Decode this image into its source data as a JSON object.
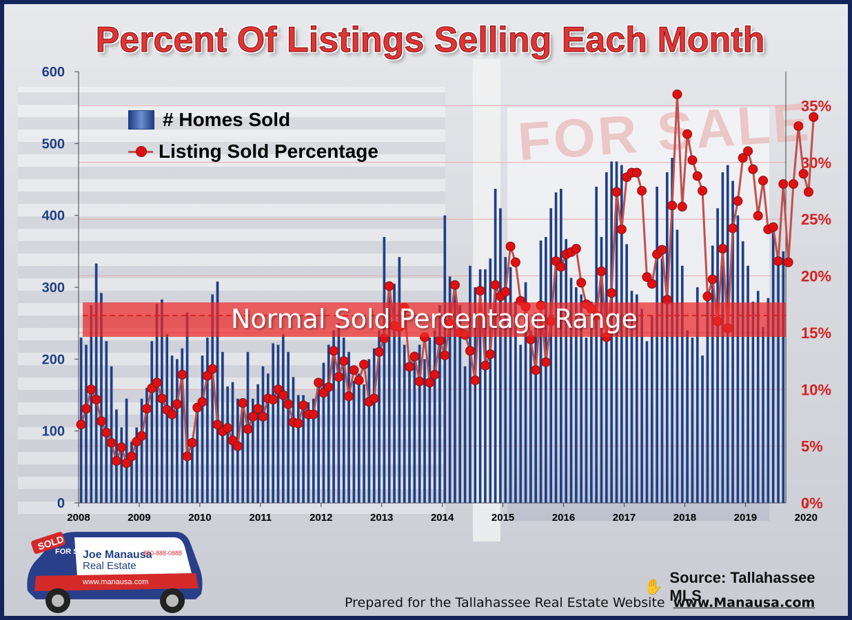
{
  "title": "Percent Of Listings Selling Each Month",
  "legend": {
    "bars": "# Homes Sold",
    "line": "Listing Sold Percentage"
  },
  "band_label": "Normal Sold Percentage Range",
  "sign_text": "FOR SALE",
  "source": "Source: Tallahassee MLS",
  "footer": {
    "text": "Prepared for the Tallahassee Real Estate Website",
    "url": "www.Manausa.com"
  },
  "car_logo": {
    "badge": "SOLD",
    "sign": "FOR SALE",
    "brand_line1": "Joe Manausa",
    "brand_line2": "Real Estate",
    "web": "www.manausa.com",
    "phone": "850-888-0888"
  },
  "colors": {
    "bars": "#1f3f86",
    "line": "#c0504d",
    "marker": "#e01010",
    "left_axis": "#1f3f86",
    "right_axis": "#d62020",
    "band": "#ec2828",
    "frame": "#14255a"
  },
  "chart_data": {
    "type": "bar+line",
    "title": "Percent Of Listings Selling Each Month",
    "x_tick_labels": [
      "2008",
      "2009",
      "2010",
      "2011",
      "2012",
      "2013",
      "2014",
      "2015",
      "2016",
      "2017",
      "2018",
      "2019",
      "2020"
    ],
    "y_left": {
      "range": [
        0,
        600
      ],
      "ticks": [
        "0",
        "100",
        "200",
        "300",
        "400",
        "500",
        "600"
      ]
    },
    "y_right": {
      "range": [
        0,
        38
      ],
      "ticks": [
        "0%",
        "5%",
        "10%",
        "15%",
        "20%",
        "25%",
        "30%",
        "35%"
      ]
    },
    "normal_range_percent": [
      15,
      18
    ],
    "normal_range_center_percent": 16.5,
    "series": [
      {
        "name": "# Homes Sold",
        "type": "bar",
        "axis": "left",
        "values": [
          230,
          220,
          275,
          333,
          292,
          225,
          190,
          130,
          105,
          145,
          85,
          105,
          145,
          160,
          225,
          277,
          283,
          235,
          205,
          200,
          215,
          265,
          85,
          130,
          205,
          230,
          290,
          308,
          210,
          162,
          168,
          145,
          130,
          210,
          145,
          165,
          190,
          180,
          222,
          220,
          235,
          210,
          175,
          150,
          150,
          140,
          145,
          170,
          195,
          220,
          240,
          250,
          230,
          210,
          170,
          180,
          165,
          200,
          215,
          240,
          370,
          300,
          305,
          342,
          220,
          200,
          210,
          220,
          200,
          230,
          240,
          275,
          400,
          315,
          300,
          275,
          190,
          330,
          300,
          325,
          325,
          340,
          437,
          410,
          342,
          328,
          280,
          220,
          307,
          240,
          265,
          365,
          370,
          410,
          432,
          437,
          367,
          313,
          300,
          290,
          230,
          280,
          440,
          370,
          460,
          475,
          475,
          470,
          360,
          295,
          290,
          270,
          225,
          260,
          440,
          340,
          460,
          480,
          380,
          330,
          240,
          230,
          300,
          205,
          295,
          358,
          410,
          460,
          470,
          448,
          400,
          364,
          330,
          280,
          295,
          245,
          285,
          378,
          350,
          350
        ]
      },
      {
        "name": "Listing Sold Percentage",
        "type": "line",
        "axis": "right",
        "values": [
          6.9,
          8.3,
          10.0,
          9.1,
          7.2,
          6.2,
          5.3,
          3.7,
          4.9,
          3.5,
          4.1,
          5.4,
          5.9,
          8.3,
          10.1,
          10.6,
          9.2,
          8.2,
          7.8,
          8.7,
          11.3,
          4.1,
          5.3,
          8.4,
          8.9,
          11.2,
          11.8,
          6.9,
          6.3,
          6.6,
          5.5,
          5.0,
          8.8,
          6.5,
          7.6,
          8.3,
          7.6,
          9.2,
          9.1,
          10.0,
          9.5,
          8.7,
          7.1,
          7.0,
          8.6,
          7.8,
          7.8,
          10.6,
          9.7,
          10.2,
          13.4,
          11.1,
          12.5,
          9.4,
          11.7,
          10.8,
          12.2,
          8.9,
          9.2,
          13.3,
          14.5,
          19.1,
          15.6,
          15.5,
          17.2,
          12.0,
          12.9,
          10.7,
          14.6,
          10.6,
          11.3,
          14.3,
          13.0,
          15.8,
          19.2,
          15.0,
          14.8,
          13.4,
          10.8,
          18.7,
          12.1,
          13.1,
          19.2,
          18.2,
          18.6,
          22.6,
          21.2,
          17.8,
          17.3,
          14.4,
          11.7,
          17.4,
          12.4,
          16.0,
          21.3,
          20.8,
          21.9,
          22.1,
          22.4,
          19.4,
          17.5,
          17.1,
          16.5,
          20.4,
          14.6,
          18.5,
          27.4,
          24.1,
          28.7,
          29.1,
          29.1,
          27.5,
          19.9,
          19.3,
          21.9,
          22.3,
          17.9,
          26.2,
          36.0,
          26.1,
          32.5,
          30.2,
          28.8,
          27.5,
          18.2,
          19.7,
          16.0,
          22.4,
          15.4,
          24.2,
          26.6,
          30.4,
          31.0,
          29.4,
          25.3,
          28.4,
          24.1,
          24.3,
          21.3,
          28.1,
          21.2,
          28.1,
          33.2,
          29.0,
          27.4,
          34.0
        ]
      }
    ]
  }
}
